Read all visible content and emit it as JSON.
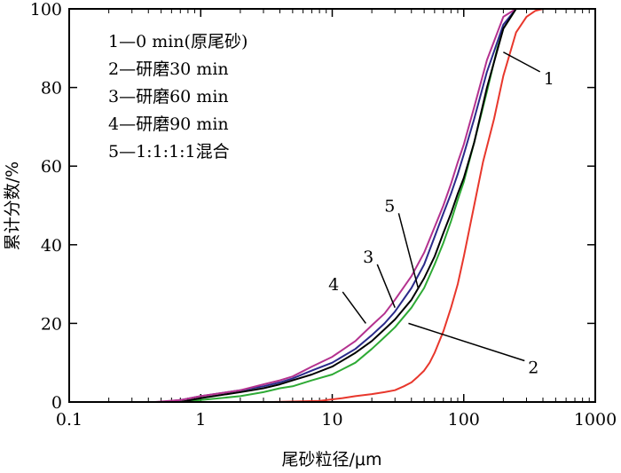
{
  "chart_data": {
    "type": "line",
    "xlabel": "尾砂粒径/μm",
    "ylabel": "累计分数/%",
    "x_scale": "log",
    "xlim": [
      0.1,
      1000
    ],
    "ylim": [
      0,
      100
    ],
    "x_ticks": [
      "0.1",
      "1",
      "10",
      "100",
      "1000"
    ],
    "y_ticks": [
      "0",
      "20",
      "40",
      "60",
      "80",
      "100"
    ],
    "grid": false,
    "legend_position": "top-left",
    "legend": [
      "1—0 min(原尾砂)",
      "2—研磨30 min",
      "3—研磨60 min",
      "4—研磨90 min",
      "5—1:1:1:1混合"
    ],
    "series": [
      {
        "name": "1",
        "color": "#e8372c",
        "x": [
          3.5,
          8,
          12,
          15,
          20,
          25,
          30,
          35,
          40,
          45,
          50,
          55,
          60,
          70,
          80,
          90,
          100,
          120,
          140,
          170,
          200,
          250,
          300,
          350,
          400,
          500
        ],
        "y": [
          0,
          0.3,
          1,
          1.5,
          2,
          2.5,
          3,
          4,
          5,
          6.5,
          8,
          10,
          12.5,
          18,
          24,
          30,
          37,
          50,
          61,
          72,
          83,
          94,
          98,
          99.5,
          100,
          100
        ]
      },
      {
        "name": "2",
        "color": "#2eaa35",
        "x": [
          0.7,
          1,
          2,
          3,
          4,
          5,
          7,
          10,
          15,
          20,
          25,
          30,
          40,
          50,
          60,
          70,
          80,
          90,
          100,
          120,
          150,
          180,
          200,
          250,
          300
        ],
        "y": [
          0,
          0.5,
          1.5,
          2.5,
          3.5,
          4,
          5.5,
          7,
          10,
          13.5,
          16.5,
          19,
          24,
          29,
          35,
          40.5,
          46,
          51.5,
          56,
          66,
          79,
          90,
          95,
          100,
          100
        ]
      },
      {
        "name": "3",
        "color": "#2a2a8a",
        "x": [
          0.5,
          0.7,
          1,
          2,
          3,
          4,
          5,
          7,
          10,
          15,
          20,
          25,
          30,
          40,
          50,
          60,
          70,
          80,
          90,
          100,
          120,
          150,
          200,
          250
        ],
        "y": [
          0,
          0.5,
          1.5,
          3,
          4,
          5,
          6,
          8,
          10,
          13.5,
          17,
          20,
          23,
          29,
          35,
          42,
          48,
          53,
          58,
          63,
          72,
          84,
          96,
          100
        ]
      },
      {
        "name": "4",
        "color": "#b4328f",
        "x": [
          0.45,
          0.7,
          1,
          2,
          3,
          4,
          5,
          7,
          10,
          15,
          20,
          25,
          30,
          40,
          50,
          60,
          70,
          80,
          90,
          100,
          120,
          150,
          200,
          250
        ],
        "y": [
          0,
          0.5,
          1.5,
          3,
          4.5,
          5.5,
          6.5,
          9,
          11.5,
          15.5,
          19.5,
          22.5,
          26,
          32,
          38,
          44.5,
          50,
          55.5,
          61,
          65.5,
          75,
          87,
          98,
          100
        ]
      },
      {
        "name": "5",
        "color": "#000000",
        "x": [
          0.7,
          1,
          2,
          3,
          4,
          5,
          7,
          10,
          15,
          20,
          25,
          30,
          40,
          50,
          60,
          70,
          80,
          90,
          100,
          120,
          150,
          200,
          250,
          300
        ],
        "y": [
          0,
          1,
          2.5,
          3.5,
          4.5,
          5.5,
          7,
          9,
          12.5,
          15.5,
          18.5,
          21,
          26,
          31.5,
          37,
          43,
          48,
          53,
          57,
          66,
          80,
          95,
          100,
          100
        ]
      }
    ],
    "annotations": [
      {
        "label": "1",
        "tx": 380,
        "ty": 84,
        "ax": 200,
        "ay": 89
      },
      {
        "label": "2",
        "tx": 290,
        "ty": 10.5,
        "ax": 38,
        "ay": 20
      },
      {
        "label": "3",
        "tx": 22,
        "ty": 35,
        "ax": 30,
        "ay": 24
      },
      {
        "label": "4",
        "tx": 12,
        "ty": 28,
        "ax": 18,
        "ay": 20
      },
      {
        "label": "5",
        "tx": 32,
        "ty": 48,
        "ax": 45,
        "ay": 29
      }
    ]
  }
}
